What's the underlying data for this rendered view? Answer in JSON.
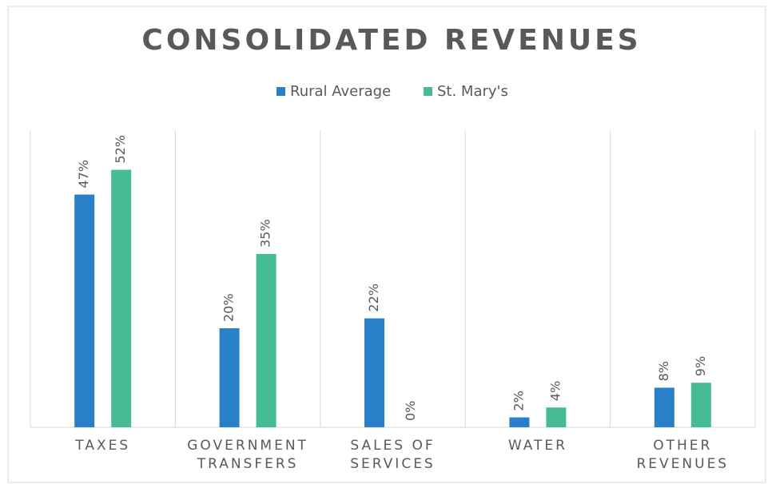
{
  "chart_data": {
    "type": "bar",
    "title": "CONSOLIDATED REVENUES",
    "categories": [
      "TAXES",
      "GOVERNMENT TRANSFERS",
      "SALES OF SERVICES",
      "WATER",
      "OTHER REVENUES"
    ],
    "series": [
      {
        "name": "Rural Average",
        "color": "#2a7fc9",
        "values": [
          47,
          20,
          22,
          2,
          8
        ],
        "value_labels": [
          "47%",
          "20%",
          "22%",
          "2%",
          "8%"
        ]
      },
      {
        "name": "St. Mary's",
        "color": "#45bc94",
        "values": [
          52,
          35,
          0,
          4,
          9
        ],
        "value_labels": [
          "52%",
          "35%",
          "0%",
          "4%",
          "9%"
        ]
      }
    ],
    "ylim": [
      0,
      60
    ],
    "legend": "top"
  }
}
